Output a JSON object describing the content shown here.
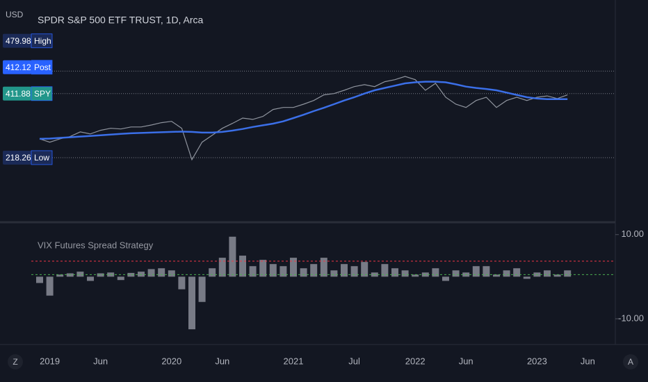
{
  "chart_data": [
    {
      "type": "line",
      "currency": "USD",
      "title": "SPDR S&P 500 ETF TRUST, 1D, Arca",
      "categories": [
        null,
        "2019",
        null,
        null,
        null,
        null,
        "Jun",
        null,
        null,
        null,
        null,
        null,
        null,
        "2020",
        null,
        null,
        null,
        null,
        "Jun",
        null,
        null,
        null,
        null,
        null,
        null,
        "2021",
        null,
        null,
        null,
        null,
        null,
        "Jul",
        null,
        null,
        null,
        null,
        null,
        "2022",
        null,
        null,
        null,
        null,
        "Jun",
        null,
        null,
        null,
        null,
        null,
        null,
        "2023",
        null,
        null,
        null,
        null,
        "Jun",
        null,
        null
      ],
      "ylim": [
        27,
        611
      ],
      "series": [
        {
          "name": "SPY",
          "color": "#8f949e",
          "values": [
            275,
            265,
            275,
            282,
            296,
            290,
            301,
            307,
            305,
            311,
            311,
            317,
            324,
            328,
            307,
            212,
            265,
            286,
            307,
            322,
            338,
            334,
            343,
            364,
            370,
            370,
            380,
            391,
            408,
            412,
            422,
            433,
            439,
            433,
            448,
            454,
            464,
            454,
            422,
            443,
            401,
            380,
            370,
            391,
            401,
            370,
            391,
            401,
            391,
            401,
            405,
            397,
            408,
            null,
            null,
            null,
            null
          ]
        },
        {
          "color": "#3b6fe8",
          "values": [
            275,
            276,
            278,
            280,
            282,
            284,
            286,
            288,
            290,
            292,
            293,
            294,
            295,
            296,
            297,
            296,
            294,
            294,
            296,
            300,
            305,
            311,
            316,
            321,
            328,
            338,
            348,
            359,
            369,
            380,
            391,
            401,
            412,
            422,
            429,
            436,
            443,
            446,
            448,
            448,
            446,
            440,
            433,
            429,
            426,
            422,
            415,
            408,
            401,
            397,
            395,
            395,
            395,
            null,
            null,
            null,
            null
          ]
        }
      ],
      "price_labels": [
        {
          "value": 479.98,
          "label": "High",
          "color": "#1b2a57",
          "line": true
        },
        {
          "value": 412.12,
          "label": "Post",
          "color": "#2962ff",
          "line": false
        },
        {
          "value": 411.88,
          "label": "SPY",
          "color": "#22968a",
          "line": true
        },
        {
          "value": 218.26,
          "label": "Low",
          "color": "#1b2a57",
          "line": true
        }
      ]
    },
    {
      "type": "bar",
      "title": "VIX Futures Spread Strategy",
      "color": "#787b86",
      "ylim": [
        -13.8,
        12.6
      ],
      "yticks": [
        {
          "value": 10,
          "label": "10.00"
        },
        {
          "value": -10,
          "label": "-10.00"
        }
      ],
      "values": [
        -1.5,
        -4.5,
        0.5,
        0.8,
        1.2,
        -1.0,
        0.8,
        1.0,
        -0.8,
        0.9,
        1.2,
        1.8,
        2.0,
        1.5,
        -3.0,
        -12.5,
        -6.0,
        2.0,
        4.5,
        9.5,
        5.0,
        2.5,
        4.0,
        3.0,
        2.5,
        4.5,
        2.0,
        3.0,
        4.5,
        1.5,
        3.0,
        2.5,
        3.5,
        1.0,
        3.0,
        2.0,
        1.5,
        0.5,
        1.0,
        2.0,
        -1.0,
        1.5,
        1.0,
        2.5,
        2.5,
        0.5,
        1.5,
        2.0,
        -0.5,
        1.0,
        1.5,
        0.5,
        1.5,
        null,
        null,
        null,
        null
      ],
      "hlines": [
        {
          "value": 3.7,
          "color": "#f23645"
        },
        {
          "value": 0.5,
          "color": "#4caf50"
        }
      ]
    }
  ]
}
